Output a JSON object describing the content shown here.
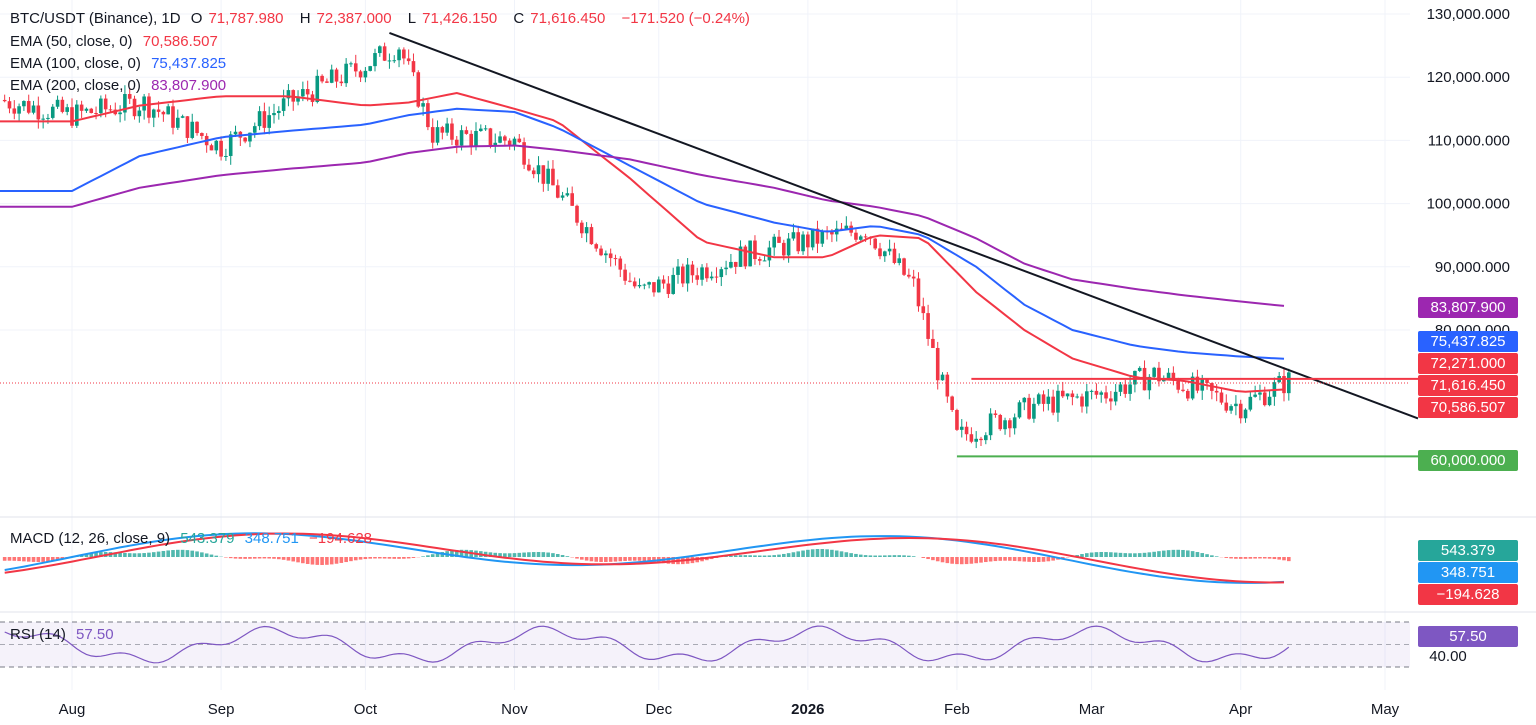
{
  "header": {
    "symbol": "BTC/USDT (Binance), 1D",
    "o_label": "O",
    "o_value": "71,787.980",
    "h_label": "H",
    "h_value": "72,387.000",
    "l_label": "L",
    "l_value": "71,426.150",
    "c_label": "C",
    "c_value": "71,616.450",
    "change": "−171.520 (−0.24%)"
  },
  "indicators": {
    "ema50": {
      "label": "EMA (50, close, 0)",
      "value": "70,586.507",
      "color": "#f23645"
    },
    "ema100": {
      "label": "EMA (100, close, 0)",
      "value": "75,437.825",
      "color": "#2962ff"
    },
    "ema200": {
      "label": "EMA (200, close, 0)",
      "value": "83,807.900",
      "color": "#9c27b0"
    },
    "macd": {
      "label": "MACD (12, 26, close, 9)",
      "hist": "543.379",
      "macd": "348.751",
      "signal": "−194.628"
    },
    "rsi": {
      "label": "RSI (14)",
      "value": "57.50",
      "level_label": "40.00"
    }
  },
  "price_axis": [
    "130,000.000",
    "120,000.000",
    "110,000.000",
    "100,000.000",
    "90,000.000",
    "80,000.000"
  ],
  "price_tags": [
    {
      "text": "83,807.900",
      "color": "#9c27b0",
      "price": 83808
    },
    {
      "text": "75,437.825",
      "color": "#2962ff",
      "price": 75438
    },
    {
      "text": "72,271.000",
      "color": "#f23645",
      "price": 72271
    },
    {
      "text": "71,616.450",
      "color": "#f23645",
      "price": 71616
    },
    {
      "text": "70,586.507",
      "color": "#f23645",
      "price": 70587
    },
    {
      "text": "60,000.000",
      "color": "#4caf50",
      "price": 60000
    }
  ],
  "macd_tags": [
    {
      "text": "543.379",
      "color": "#26a69a"
    },
    {
      "text": "348.751",
      "color": "#2196f3"
    },
    {
      "text": "−194.628",
      "color": "#f23645"
    }
  ],
  "rsi_tag": {
    "text": "57.50",
    "color": "#7e57c2"
  },
  "time_axis": [
    "Aug",
    "Sep",
    "Oct",
    "Nov",
    "Dec",
    "2026",
    "Feb",
    "Mar",
    "Apr",
    "May"
  ],
  "chart_data": {
    "type": "line",
    "price_range": [
      50000,
      130000
    ],
    "trendline": {
      "from": [
        "Oct 6",
        127000
      ],
      "to": [
        "May",
        66000
      ]
    },
    "resistance": 72271,
    "support": 60000,
    "last_close": 71616,
    "series": [
      {
        "name": "EMA (50, close, 0)",
        "color": "#f23645",
        "y": [
          113000,
          115500,
          117000,
          117000,
          115500,
          116000,
          117500,
          115000,
          113000,
          104000,
          94000,
          91500,
          91500,
          95000,
          94500,
          86000,
          80000,
          75500,
          72500,
          72000,
          70200,
          70587
        ]
      },
      {
        "name": "EMA (100, close, 0)",
        "color": "#2962ff",
        "y": [
          102000,
          107500,
          110500,
          111500,
          112500,
          114000,
          115000,
          114500,
          112000,
          106000,
          100000,
          97000,
          95500,
          96500,
          95000,
          90000,
          84000,
          80000,
          77500,
          76500,
          75800,
          75438
        ]
      },
      {
        "name": "EMA (200, close, 0)",
        "color": "#9c27b0",
        "y": [
          99500,
          102500,
          104500,
          105500,
          106500,
          108000,
          109000,
          109200,
          108500,
          107000,
          104500,
          102500,
          100500,
          99500,
          98000,
          94500,
          90500,
          88000,
          86500,
          85500,
          84500,
          83808
        ]
      },
      {
        "name": "MACD (12, 26, close, 9)",
        "color": "#2196f3"
      },
      {
        "name": "RSI (14)",
        "color": "#7e57c2"
      }
    ],
    "ema_dates": [
      "Aug 1",
      "Aug 15",
      "Sep 1",
      "Sep 15",
      "Oct 1",
      "Oct 10",
      "Oct 20",
      "Nov 1",
      "Nov 10",
      "Nov 25",
      "Dec 10",
      "Dec 25",
      "Jan 5",
      "Jan 15",
      "Jan 25",
      "Feb 5",
      "Feb 15",
      "Feb 25",
      "Mar 10",
      "Mar 20",
      "Apr 1",
      "Apr 10"
    ]
  }
}
